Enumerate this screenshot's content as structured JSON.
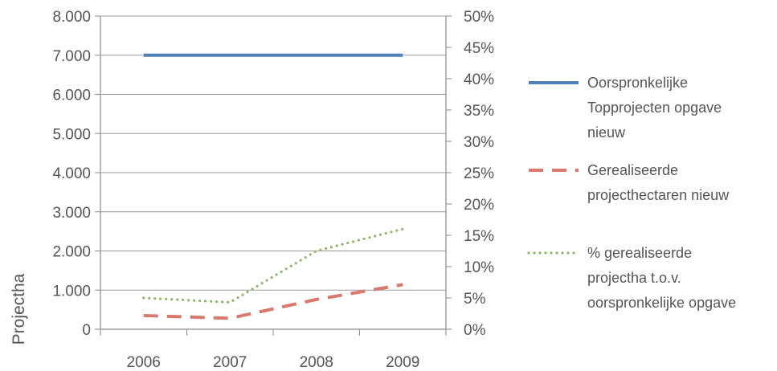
{
  "chart_data": {
    "type": "line",
    "title": "",
    "xlabel": "",
    "ylabel": "Projectha",
    "y2label": "",
    "categories": [
      "2006",
      "2007",
      "2008",
      "2009"
    ],
    "ylim": [
      0,
      8000
    ],
    "y_ticks": [
      "0",
      "1.000",
      "2.000",
      "3.000",
      "4.000",
      "5.000",
      "6.000",
      "7.000",
      "8.000"
    ],
    "y2lim": [
      0,
      50
    ],
    "y2_ticks": [
      "0%",
      "5%",
      "10%",
      "15%",
      "20%",
      "25%",
      "30%",
      "35%",
      "40%",
      "45%",
      "50%"
    ],
    "grid": true,
    "legend_position": "right",
    "series": [
      {
        "name": "Oorspronkelijke Topprojecten opgave nieuw",
        "legend_lines": [
          "Oorspronkelijke",
          "Topprojecten opgave",
          "nieuw"
        ],
        "axis": "left",
        "values": [
          7000,
          7000,
          7000,
          7000
        ],
        "color": "#4F81BD",
        "style": "solid"
      },
      {
        "name": "Gerealiseerde projecthectaren nieuw",
        "legend_lines": [
          "Gerealiseerde",
          "projecthectaren nieuw"
        ],
        "axis": "left",
        "values": [
          350,
          280,
          760,
          1140
        ],
        "color": "#D9786F",
        "style": "dashed"
      },
      {
        "name": "% gerealiseerde projectha t.o.v. oorspronkelijke opgave",
        "legend_lines": [
          "% gerealiseerde",
          "projectha t.o.v.",
          "oorspronkelijke opgave"
        ],
        "axis": "right",
        "values": [
          5,
          4.3,
          12.5,
          16
        ],
        "unit": "%",
        "color": "#8DB86A",
        "style": "dotted"
      }
    ]
  }
}
